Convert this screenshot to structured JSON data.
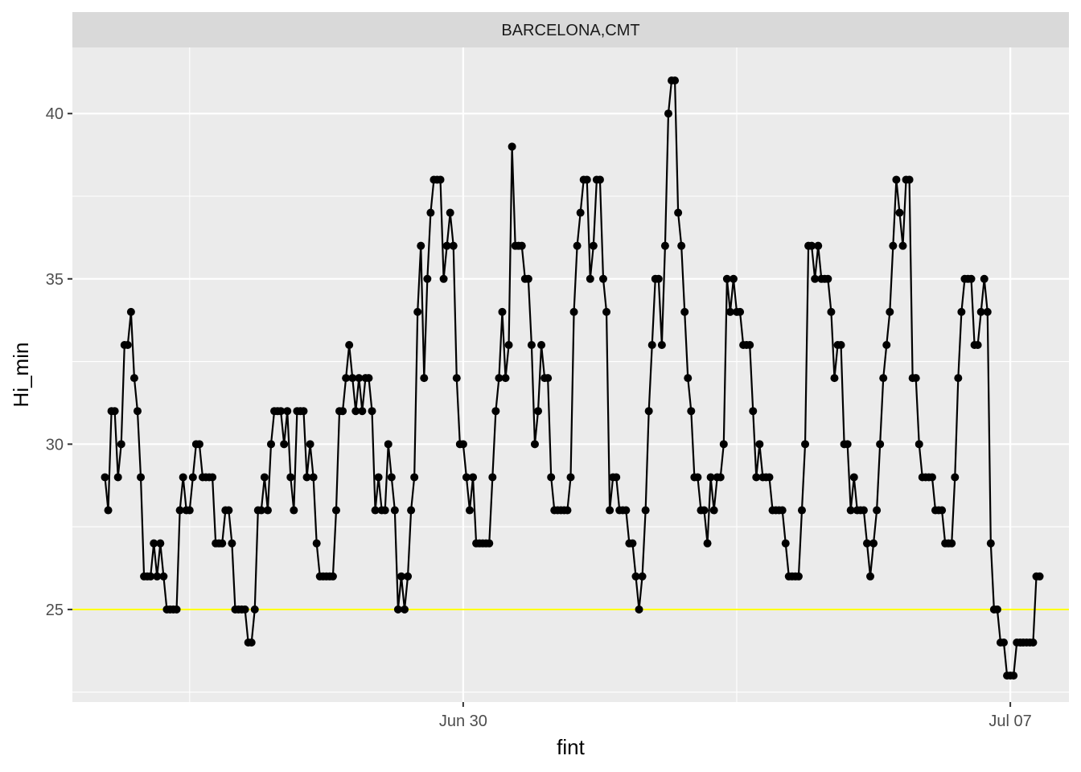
{
  "chart_data": {
    "type": "line",
    "panel_title": "BARCELONA,CMT",
    "xlabel": "fint",
    "ylabel": "Hi_min",
    "x_tick_labels": [
      "Jun 30",
      "Jul 07"
    ],
    "y_ticks": [
      25,
      30,
      35,
      40
    ],
    "ylim": [
      22.2,
      42.0
    ],
    "xlim": [
      "2023-06-25T00:00",
      "2023-07-07T18:00"
    ],
    "x_start": "2023-06-25T10:00",
    "x_step_hours": 1,
    "reference_line": {
      "y": 25,
      "color": "#ffff00"
    },
    "colors": {
      "line": "#000000",
      "panel": "#ebebeb",
      "grid": "#ffffff",
      "strip": "#d9d9d9"
    },
    "series": [
      {
        "values": [
          29,
          28,
          31,
          31,
          29,
          30,
          33,
          33,
          34,
          32,
          31,
          29,
          26,
          26,
          26,
          27,
          26,
          27,
          26,
          25,
          25,
          25,
          25,
          28,
          29,
          28,
          28,
          29,
          30,
          30,
          29,
          29,
          29,
          29,
          27,
          27,
          27,
          28,
          28,
          27,
          25,
          25,
          25,
          25,
          24,
          24,
          25,
          28,
          28,
          29,
          28,
          30,
          31,
          31,
          31,
          30,
          31,
          29,
          28,
          31,
          31,
          31,
          29,
          30,
          29,
          27,
          26,
          26,
          26,
          26,
          26,
          28,
          31,
          31,
          32,
          33,
          32,
          31,
          32,
          31,
          32,
          32,
          31,
          28,
          29,
          28,
          28,
          30,
          29,
          28,
          25,
          26,
          25,
          26,
          28,
          29,
          34,
          36,
          32,
          35,
          37,
          38,
          38,
          38,
          35,
          36,
          37,
          36,
          32,
          30,
          30,
          29,
          28,
          29,
          27,
          27,
          27,
          27,
          27,
          29,
          31,
          32,
          34,
          32,
          33,
          39,
          36,
          36,
          36,
          35,
          35,
          33,
          30,
          31,
          33,
          32,
          32,
          29,
          28,
          28,
          28,
          28,
          28,
          29,
          34,
          36,
          37,
          38,
          38,
          35,
          36,
          38,
          38,
          35,
          34,
          28,
          29,
          29,
          28,
          28,
          28,
          27,
          27,
          26,
          25,
          26,
          28,
          31,
          33,
          35,
          35,
          33,
          36,
          40,
          41,
          41,
          37,
          36,
          34,
          32,
          31,
          29,
          29,
          28,
          28,
          27,
          29,
          28,
          29,
          29,
          30,
          35,
          34,
          35,
          34,
          34,
          33,
          33,
          33,
          31,
          29,
          30,
          29,
          29,
          29,
          28,
          28,
          28,
          28,
          27,
          26,
          26,
          26,
          26,
          28,
          30,
          36,
          36,
          35,
          36,
          35,
          35,
          35,
          34,
          32,
          33,
          33,
          30,
          30,
          28,
          29,
          28,
          28,
          28,
          27,
          26,
          27,
          28,
          30,
          32,
          33,
          34,
          36,
          38,
          37,
          36,
          38,
          38,
          32,
          32,
          30,
          29,
          29,
          29,
          29,
          28,
          28,
          28,
          27,
          27,
          27,
          29,
          32,
          34,
          35,
          35,
          35,
          33,
          33,
          34,
          35,
          34,
          27,
          25,
          25,
          24,
          24,
          23,
          23,
          23,
          24,
          24,
          24,
          24,
          24,
          24,
          26,
          26
        ]
      }
    ]
  }
}
